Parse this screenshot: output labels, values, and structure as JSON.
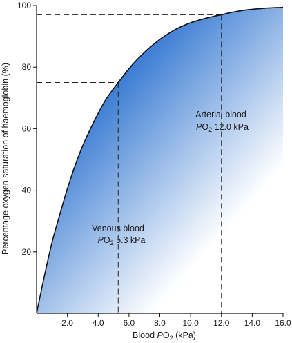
{
  "chart_data": {
    "type": "line",
    "xlabel": {
      "prefix": "Blood ",
      "italic": "P",
      "sub": "O",
      "subscript": "2",
      "suffix": " (kPa)"
    },
    "ylabel": "Percentage oxygen saturation of haemoglobin (%)",
    "xlim": [
      0,
      16
    ],
    "ylim": [
      0,
      100
    ],
    "x_ticks": [
      "2.0",
      "4.0",
      "6.0",
      "8.0",
      "10.0",
      "12.0",
      "14.0",
      "16.0"
    ],
    "y_ticks": [
      "20",
      "40",
      "60",
      "80",
      "100"
    ],
    "grid": false,
    "legend": "none",
    "fill": {
      "color_dark": "#3f7fd4",
      "color_light": "#ffffff"
    },
    "series": [
      {
        "x": [
          0,
          0.5,
          1,
          1.5,
          2,
          2.5,
          3,
          3.5,
          4,
          4.5,
          5,
          5.3,
          5.5,
          6,
          6.5,
          7,
          7.5,
          8,
          8.5,
          9,
          9.5,
          10,
          10.5,
          11,
          11.5,
          12,
          12.5,
          13,
          13.5,
          14,
          14.5,
          15,
          15.5,
          16
        ],
        "y": [
          0,
          12,
          23,
          32,
          40.5,
          48,
          54.5,
          60,
          65,
          69.5,
          73,
          75,
          76.3,
          79.5,
          82.3,
          84.8,
          87,
          89,
          90.7,
          92.2,
          93.4,
          94.4,
          95.2,
          95.9,
          96.5,
          97,
          97.6,
          98.1,
          98.5,
          98.8,
          99,
          99.2,
          99.3,
          99.4
        ]
      }
    ],
    "reference_points": [
      {
        "x": 5.3,
        "y": 75,
        "label_line1": "Venous blood",
        "label_italic": "P",
        "label_sub_base": "O",
        "label_subscript": "2",
        "label_value": " 5.3 kPa"
      },
      {
        "x": 12.0,
        "y": 97,
        "label_line1": "Arterial blood",
        "label_italic": "P",
        "label_sub_base": "O",
        "label_subscript": "2",
        "label_value": " 12.0 kPa"
      }
    ]
  }
}
